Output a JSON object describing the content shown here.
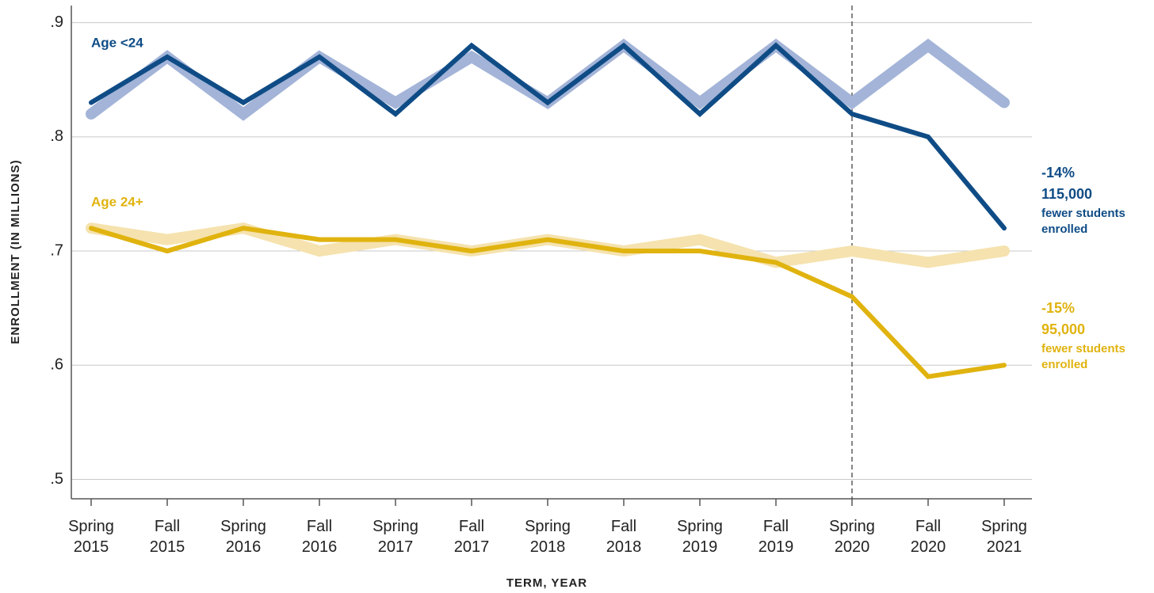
{
  "chart_data": {
    "type": "line",
    "y_axis_label": "ENROLLMENT (IN MILLIONS)",
    "x_axis_label": "TERM, YEAR",
    "categories": [
      "Spring 2015",
      "Fall 2015",
      "Spring 2016",
      "Fall 2016",
      "Spring 2017",
      "Fall 2017",
      "Spring 2018",
      "Fall 2018",
      "Spring 2019",
      "Fall 2019",
      "Spring 2020",
      "Fall 2020",
      "Spring 2021"
    ],
    "series": [
      {
        "color": "#a3b4d8",
        "width": 14,
        "values": [
          0.82,
          0.87,
          0.82,
          0.87,
          0.83,
          0.87,
          0.83,
          0.88,
          0.83,
          0.88,
          0.83,
          0.88,
          0.83
        ]
      },
      {
        "color": "#f5e2ae",
        "width": 14,
        "values": [
          0.72,
          0.71,
          0.72,
          0.7,
          0.71,
          0.7,
          0.71,
          0.7,
          0.71,
          0.69,
          0.7,
          0.69,
          0.7
        ]
      },
      {
        "name": "Age <24",
        "color": "#0f4c86",
        "width": 6,
        "values": [
          0.83,
          0.87,
          0.83,
          0.87,
          0.82,
          0.88,
          0.83,
          0.88,
          0.82,
          0.88,
          0.82,
          0.8,
          0.72
        ]
      },
      {
        "name": "Age 24+",
        "color": "#e0b30f",
        "width": 6,
        "values": [
          0.72,
          0.7,
          0.72,
          0.71,
          0.71,
          0.7,
          0.71,
          0.7,
          0.7,
          0.69,
          0.66,
          0.59,
          0.6
        ]
      }
    ],
    "ylim": [
      0.483,
      0.915
    ],
    "yticks": [
      {
        "value": 0.5,
        "label": ".5"
      },
      {
        "value": 0.6,
        "label": ".6"
      },
      {
        "value": 0.7,
        "label": ".7"
      },
      {
        "value": 0.8,
        "label": ".8"
      },
      {
        "value": 0.9,
        "label": ".9"
      }
    ],
    "grid": true,
    "vline": "Spring 2020",
    "annotations": [
      {
        "color": "#0f4c86",
        "lines": [
          "-14%",
          "115,000",
          "fewer students enrolled"
        ]
      },
      {
        "color": "#e0b30f",
        "lines": [
          "-15%",
          "95,000",
          "fewer students enrolled"
        ]
      }
    ]
  }
}
